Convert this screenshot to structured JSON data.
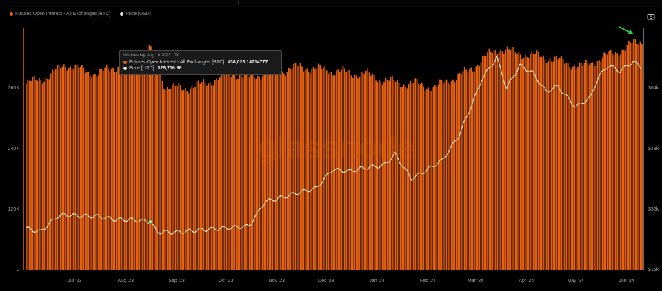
{
  "legend": {
    "oi_label": "Futures Open Interest - All Exchanges [BTC]",
    "price_label": "Price [USD]",
    "oi_color": "#e8610f",
    "price_color": "#e8e0d0"
  },
  "watermark": "glassnode",
  "tooltip": {
    "date": "Wednesday, Aug 16 2023 UTC",
    "oi_label": "Futures Open Interest - All Exchanges [BTC]:",
    "oi_value": "438,028.14714777",
    "price_label": "Price [USD]:",
    "price_value": "$28,716.96"
  },
  "icons": {
    "camera": "camera-icon",
    "arrow": "arrow-icon"
  },
  "chart_data": {
    "type": "bar",
    "x_range": [
      "2023-06-01",
      "2024-06-10"
    ],
    "x_ticks": [
      "Jul '23",
      "Aug '23",
      "Sep '23",
      "Oct '23",
      "Nov '23",
      "Dec '23",
      "Jan '24",
      "Feb '24",
      "Mar '24",
      "Apr '24",
      "May '24",
      "Jun '24"
    ],
    "y_left": {
      "ticks": [
        "0",
        "120K",
        "240K",
        "360K"
      ],
      "tick_values": [
        0,
        120000,
        240000,
        360000
      ],
      "range": [
        0,
        480000
      ]
    },
    "y_right": {
      "ticks": [
        "$16k",
        "$32k",
        "$48k",
        "$64k"
      ],
      "tick_values": [
        16000,
        32000,
        48000,
        64000
      ],
      "range": [
        16000,
        80000
      ],
      "scale": "linear"
    },
    "series": [
      {
        "name": "Futures Open Interest - All Exchanges [BTC]",
        "type": "bar",
        "axis": "left",
        "color": "#e8610f",
        "x": [
          "2023-06-01",
          "2023-06-15",
          "2023-06-25",
          "2023-07-05",
          "2023-07-15",
          "2023-07-25",
          "2023-08-05",
          "2023-08-16",
          "2023-08-25",
          "2023-09-05",
          "2023-09-15",
          "2023-09-25",
          "2023-10-05",
          "2023-10-15",
          "2023-10-25",
          "2023-11-05",
          "2023-11-15",
          "2023-11-25",
          "2023-12-05",
          "2023-12-15",
          "2023-12-25",
          "2024-01-05",
          "2024-01-15",
          "2024-01-25",
          "2024-02-05",
          "2024-02-15",
          "2024-02-25",
          "2024-03-05",
          "2024-03-15",
          "2024-03-25",
          "2024-04-05",
          "2024-04-15",
          "2024-04-25",
          "2024-05-05",
          "2024-05-15",
          "2024-05-25",
          "2024-06-05",
          "2024-06-10"
        ],
        "values": [
          368000,
          384000,
          408000,
          395000,
          388000,
          402000,
          408000,
          438000,
          362000,
          360000,
          366000,
          378000,
          390000,
          380000,
          392000,
          395000,
          402000,
          398000,
          395000,
          390000,
          388000,
          376000,
          370000,
          368000,
          360000,
          378000,
          392000,
          418000,
          440000,
          430000,
          425000,
          420000,
          410000,
          402000,
          418000,
          430000,
          448000,
          452000
        ]
      },
      {
        "name": "Price [USD]",
        "type": "line",
        "axis": "right",
        "color": "#e8e0d0",
        "x": [
          "2023-06-01",
          "2023-06-10",
          "2023-06-20",
          "2023-06-25",
          "2023-07-05",
          "2023-07-15",
          "2023-07-25",
          "2023-08-05",
          "2023-08-16",
          "2023-08-20",
          "2023-09-01",
          "2023-09-15",
          "2023-10-01",
          "2023-10-15",
          "2023-10-25",
          "2023-11-05",
          "2023-11-15",
          "2023-11-25",
          "2023-12-05",
          "2023-12-15",
          "2023-12-25",
          "2024-01-05",
          "2024-01-12",
          "2024-01-22",
          "2024-02-01",
          "2024-02-10",
          "2024-02-20",
          "2024-03-01",
          "2024-03-05",
          "2024-03-14",
          "2024-03-20",
          "2024-03-28",
          "2024-04-05",
          "2024-04-13",
          "2024-04-20",
          "2024-05-01",
          "2024-05-10",
          "2024-05-15",
          "2024-05-21",
          "2024-05-28",
          "2024-06-05",
          "2024-06-10"
        ],
        "values": [
          27000,
          26000,
          30000,
          30500,
          30200,
          30100,
          29300,
          29200,
          28717,
          26000,
          25900,
          26500,
          27000,
          27500,
          34000,
          35200,
          36500,
          37500,
          42500,
          42000,
          43000,
          43500,
          46500,
          40000,
          42500,
          45000,
          51500,
          62000,
          66500,
          72000,
          64000,
          70000,
          68000,
          63000,
          64500,
          59000,
          61500,
          67000,
          70000,
          68500,
          71000,
          69500
        ]
      }
    ],
    "legend_position": "top-left",
    "grid": false
  }
}
